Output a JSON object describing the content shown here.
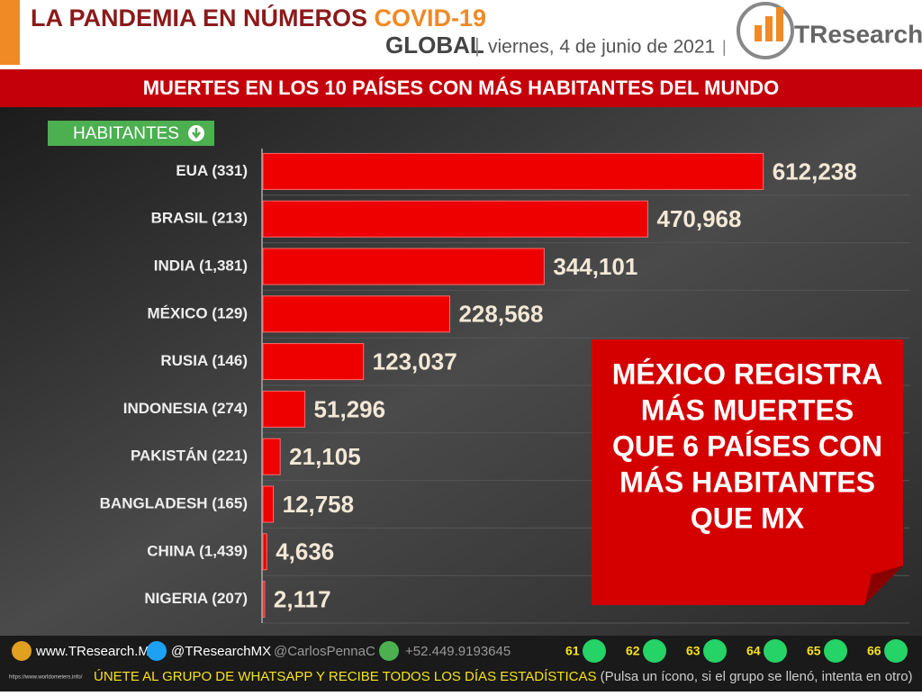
{
  "header": {
    "title": "LA PANDEMIA EN NÚMEROS",
    "title_highlight": "COVID-19",
    "scope": "GLOBAL",
    "date": "viernes, 4 de junio de 2021",
    "logo": "TResearch"
  },
  "chart_data": {
    "type": "hbar",
    "title": "MUERTES EN LOS 10 PAÍSES CON MÁS HABITANTES DEL MUNDO",
    "badge": "HABITANTES",
    "categories": [
      "EUA (331)",
      "BRASIL (213)",
      "INDIA (1,381)",
      "MÉXICO (129)",
      "RUSIA (146)",
      "INDONESIA (274)",
      "PAKISTÁN (221)",
      "BANGLADESH (165)",
      "CHINA (1,439)",
      "NIGERIA (207)"
    ],
    "values": [
      612238,
      470968,
      344101,
      228568,
      123037,
      51296,
      21105,
      12758,
      4636,
      2117
    ],
    "value_labels": [
      "612,238",
      "470,968",
      "344,101",
      "228,568",
      "123,037",
      "51,296",
      "21,105",
      "12,758",
      "4,636",
      "2,117"
    ],
    "color": "#ee0000",
    "xlim": [
      0,
      780000
    ],
    "annotation": [
      "MÉXICO REGISTRA",
      "MÁS MUERTES",
      "QUE 6 PAÍSES CON",
      "MÁS HABITANTES",
      "QUE MX"
    ]
  },
  "footer": {
    "website": "www.TResearch.Mx",
    "twitter": "@TResearchMX",
    "twitter2": "@CarlosPennaC",
    "phone": "+52.449.9193645",
    "groups": [
      "61",
      "62",
      "63",
      "64",
      "65",
      "66"
    ],
    "call": "ÚNETE AL GRUPO DE WHATSAPP Y RECIBE TODOS LOS DÍAS ESTADÍSTICAS",
    "hint": "(Pulsa un ícono, si el grupo se llenó, intenta en otro)",
    "source": "https://www.worldometers.info/"
  }
}
